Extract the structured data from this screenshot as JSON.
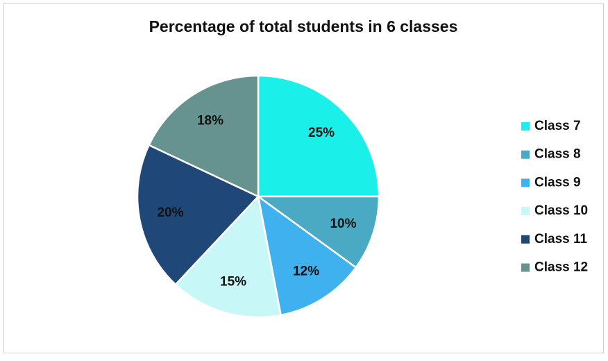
{
  "chart_data": {
    "type": "pie",
    "title": "Percentage of total students in 6 classes",
    "categories": [
      "Class 7",
      "Class 8",
      "Class 9",
      "Class 10",
      "Class 11",
      "Class 12"
    ],
    "values": [
      25,
      10,
      12,
      15,
      20,
      18
    ],
    "value_labels": [
      "25%",
      "10%",
      "12%",
      "15%",
      "20%",
      "18%"
    ],
    "colors": [
      "#1aefe9",
      "#4aa9c3",
      "#3fb1ef",
      "#c7f7f6",
      "#1f4878",
      "#66928f"
    ],
    "legend": "right"
  }
}
